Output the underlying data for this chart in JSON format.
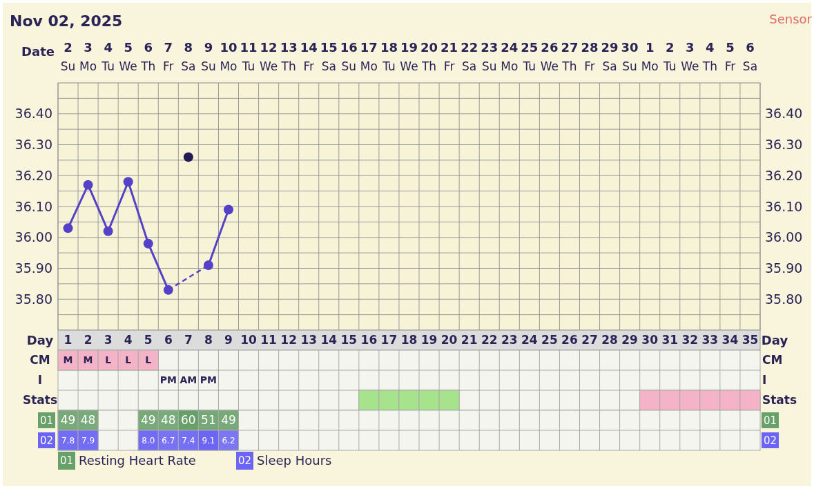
{
  "chart_data": [
    {
      "type": "line",
      "title": "Nov 02, 2025",
      "annotations": [
        "Sensor"
      ],
      "xlabel": "Date",
      "x2label": "Day",
      "x": [
        "2025-11-02",
        "2025-11-03",
        "2025-11-04",
        "2025-11-05",
        "2025-11-06",
        "2025-11-07",
        "2025-11-08",
        "2025-11-09",
        "2025-11-10"
      ],
      "xlim": [
        "2025-11-01T12:00",
        "2025-12-06T12:00"
      ],
      "xticks": [
        {
          "value": "2025-11-02",
          "label": "2 Su"
        },
        {
          "value": "2025-11-03",
          "label": "3 Mo"
        },
        {
          "value": "2025-11-04",
          "label": "4 Tu"
        },
        {
          "value": "2025-11-05",
          "label": "5 We"
        },
        {
          "value": "2025-11-06",
          "label": "6 Th"
        },
        {
          "value": "2025-11-07",
          "label": "7 Fr"
        },
        {
          "value": "2025-11-08",
          "label": "8 Sa"
        },
        {
          "value": "2025-11-09",
          "label": "9 Su"
        },
        {
          "value": "2025-11-10",
          "label": "10 Mo"
        },
        {
          "value": "2025-11-11",
          "label": "11 Tu"
        },
        {
          "value": "2025-11-12",
          "label": "12 We"
        },
        {
          "value": "2025-11-13",
          "label": "13 Th"
        },
        {
          "value": "2025-11-14",
          "label": "14 Fr"
        },
        {
          "value": "2025-11-15",
          "label": "15 Sa"
        },
        {
          "value": "2025-11-16",
          "label": "16 Su"
        },
        {
          "value": "2025-11-17",
          "label": "17 Mo"
        },
        {
          "value": "2025-11-18",
          "label": "18 Tu"
        },
        {
          "value": "2025-11-19",
          "label": "19 We"
        },
        {
          "value": "2025-11-20",
          "label": "20 Th"
        },
        {
          "value": "2025-11-21",
          "label": "21 Fr"
        },
        {
          "value": "2025-11-22",
          "label": "22 Sa"
        },
        {
          "value": "2025-11-23",
          "label": "23 Su"
        },
        {
          "value": "2025-11-24",
          "label": "24 Mo"
        },
        {
          "value": "2025-11-25",
          "label": "25 Tu"
        },
        {
          "value": "2025-11-26",
          "label": "26 We"
        },
        {
          "value": "2025-11-27",
          "label": "27 Th"
        },
        {
          "value": "2025-11-28",
          "label": "28 Fr"
        },
        {
          "value": "2025-11-29",
          "label": "29 Sa"
        },
        {
          "value": "2025-11-30",
          "label": "30 Su"
        },
        {
          "value": "2025-12-01",
          "label": "1 Mo"
        },
        {
          "value": "2025-12-02",
          "label": "2 Tu"
        },
        {
          "value": "2025-12-03",
          "label": "3 We"
        },
        {
          "value": "2025-12-04",
          "label": "4 Th"
        },
        {
          "value": "2025-12-05",
          "label": "5 Fr"
        },
        {
          "value": "2025-12-06",
          "label": "6 Sa"
        }
      ],
      "x2lim": [
        0.5,
        35.5
      ],
      "x2ticks": [
        1,
        2,
        3,
        4,
        5,
        6,
        7,
        8,
        9,
        10,
        11,
        12,
        13,
        14,
        15,
        16,
        17,
        18,
        19,
        20,
        21,
        22,
        23,
        24,
        25,
        26,
        27,
        28,
        29,
        30,
        31,
        32,
        33,
        34,
        35
      ],
      "series": [
        {
          "color": "#5540c8",
          "line_style": "solid",
          "marker": "circle",
          "values": [
            36.03,
            36.17,
            36.02,
            36.18,
            35.98,
            35.83,
            null,
            35.91,
            36.09
          ]
        },
        {
          "type": "scatter",
          "color": "#221a55",
          "marker": "circle",
          "values": [
            null,
            null,
            null,
            null,
            null,
            null,
            36.26,
            null,
            null
          ]
        }
      ],
      "ylim": [
        35.7,
        36.5
      ],
      "yticks": [
        {
          "value": 35.75,
          "label": null
        },
        {
          "value": 35.8,
          "label": "35.80"
        },
        {
          "value": 35.85,
          "label": null
        },
        {
          "value": 35.9,
          "label": "35.90"
        },
        {
          "value": 35.95,
          "label": null
        },
        {
          "value": 36.0,
          "label": "36.00"
        },
        {
          "value": 36.05,
          "label": null
        },
        {
          "value": 36.1,
          "label": "36.10"
        },
        {
          "value": 36.15,
          "label": null
        },
        {
          "value": 36.2,
          "label": "36.20"
        },
        {
          "value": 36.25,
          "label": null
        },
        {
          "value": 36.3,
          "label": "36.30"
        },
        {
          "value": 36.35,
          "label": null
        },
        {
          "value": 36.4,
          "label": "36.40"
        },
        {
          "value": 36.45,
          "label": null
        }
      ],
      "y2lim": [
        35.7,
        36.5
      ],
      "y2ticks": [
        {
          "value": 35.8,
          "label": "35.80"
        },
        {
          "value": 35.9,
          "label": "35.90"
        },
        {
          "value": 36.0,
          "label": "36.00"
        },
        {
          "value": 36.1,
          "label": "36.10"
        },
        {
          "value": 36.2,
          "label": "36.20"
        },
        {
          "value": 36.3,
          "label": "36.30"
        },
        {
          "value": 36.4,
          "label": "36.40"
        }
      ],
      "grid": true
    },
    {
      "type": "other",
      "y_categories": [
        "CM",
        "I",
        "Stats"
      ],
      "cells": [
        [
          "M",
          "M",
          "L",
          "L",
          "L",
          null,
          null,
          null,
          null,
          null,
          null,
          null,
          null,
          null,
          null,
          null,
          null,
          null,
          null,
          null,
          null,
          null,
          null,
          null,
          null,
          null,
          null,
          null,
          null,
          null,
          null,
          null,
          null,
          null,
          null
        ],
        [
          null,
          null,
          null,
          null,
          null,
          "PM",
          "AM",
          "PM",
          null,
          null,
          null,
          null,
          null,
          null,
          null,
          null,
          null,
          null,
          null,
          null,
          null,
          null,
          null,
          null,
          null,
          null,
          null,
          null,
          null,
          null,
          null,
          null,
          null,
          null,
          null
        ],
        [
          null,
          null,
          null,
          null,
          null,
          null,
          null,
          null,
          null,
          null,
          null,
          null,
          null,
          null,
          null,
          null,
          null,
          null,
          null,
          null,
          null,
          null,
          null,
          null,
          null,
          null,
          null,
          null,
          null,
          null,
          null,
          null,
          null,
          null,
          null
        ]
      ],
      "colors": [
        [
          "#f4b3c7",
          "#f4b3c7",
          "#f4b3c7",
          "#f4b3c7",
          "#f4b3c7",
          null,
          null,
          null,
          null,
          null,
          null,
          null,
          null,
          null,
          null,
          null,
          null,
          null,
          null,
          null,
          null,
          null,
          null,
          null,
          null,
          null,
          null,
          null,
          null,
          null,
          null,
          null,
          null,
          null,
          null
        ],
        [
          null,
          null,
          null,
          null,
          null,
          null,
          null,
          null,
          null,
          null,
          null,
          null,
          null,
          null,
          null,
          null,
          null,
          null,
          null,
          null,
          null,
          null,
          null,
          null,
          null,
          null,
          null,
          null,
          null,
          null,
          null,
          null,
          null,
          null,
          null
        ],
        [
          null,
          null,
          null,
          null,
          null,
          null,
          null,
          null,
          null,
          null,
          null,
          null,
          null,
          null,
          null,
          "#a6e38a",
          "#a6e38a",
          "#a6e38a",
          "#a6e38a",
          "#a6e38a",
          null,
          null,
          null,
          null,
          null,
          null,
          null,
          null,
          null,
          "#f4b3c7",
          "#f4b3c7",
          "#f4b3c7",
          "#f4b3c7",
          "#f4b3c7",
          "#f4b3c7"
        ]
      ],
      "y2_categories": [
        "CM",
        "I",
        "Stats"
      ]
    },
    {
      "type": "heatmap",
      "categories": [
        null,
        null,
        null,
        null,
        null,
        null,
        null,
        null,
        null,
        null,
        null,
        null,
        null,
        null,
        null,
        null,
        null,
        null,
        null,
        null,
        null,
        null,
        null,
        null,
        null,
        null,
        null,
        null,
        null,
        null,
        null,
        null,
        null,
        null,
        null
      ],
      "y_categories": [
        "01",
        "02"
      ],
      "y2_categories": [
        "01",
        "02"
      ],
      "colors": [
        "#68a06a",
        "#6b64f4"
      ],
      "cells": [
        [
          49,
          48,
          null,
          null,
          49,
          48,
          60,
          51,
          49,
          null,
          null,
          null,
          null,
          null,
          null,
          null,
          null,
          null,
          null,
          null,
          null,
          null,
          null,
          null,
          null,
          null,
          null,
          null,
          null,
          null,
          null,
          null,
          null,
          null,
          null
        ],
        [
          7.8,
          7.9,
          null,
          null,
          8.0,
          6.7,
          7.4,
          9.1,
          6.2,
          null,
          null,
          null,
          null,
          null,
          null,
          null,
          null,
          null,
          null,
          null,
          null,
          null,
          null,
          null,
          null,
          null,
          null,
          null,
          null,
          null,
          null,
          null,
          null,
          null,
          null
        ]
      ],
      "cell_labels": [
        [
          "49",
          "48",
          null,
          null,
          "49",
          "48",
          "60",
          "51",
          "49",
          null,
          null,
          null,
          null,
          null,
          null,
          null,
          null,
          null,
          null,
          null,
          null,
          null,
          null,
          null,
          null,
          null,
          null,
          null,
          null,
          null,
          null,
          null,
          null,
          null,
          null
        ],
        [
          "7.8",
          "7.9",
          null,
          null,
          "8.0",
          "6.7",
          "7.4",
          "9.1",
          "6.2",
          null,
          null,
          null,
          null,
          null,
          null,
          null,
          null,
          null,
          null,
          null,
          null,
          null,
          null,
          null,
          null,
          null,
          null,
          null,
          null,
          null,
          null,
          null,
          null,
          null,
          null
        ]
      ],
      "annotations": [
        "Resting Heart Rate",
        "Sleep Hours"
      ]
    }
  ]
}
